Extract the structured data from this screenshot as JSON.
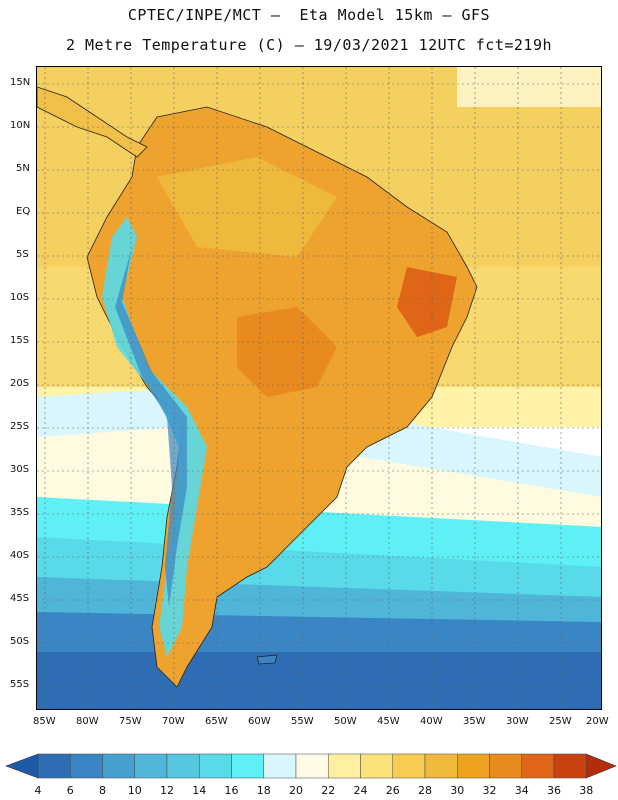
{
  "header": {
    "line1": "CPTEC/INPE/MCT —  Eta Model 15km — GFS",
    "line2": "2 Metre Temperature (C) — 19/03/2021 12UTC fct=219h"
  },
  "map": {
    "lat_labels": [
      "15N",
      "10N",
      "5N",
      "EQ",
      "5S",
      "10S",
      "15S",
      "20S",
      "25S",
      "30S",
      "35S",
      "40S",
      "45S",
      "50S",
      "55S"
    ],
    "lon_labels": [
      "85W",
      "80W",
      "75W",
      "70W",
      "65W",
      "60W",
      "55W",
      "50W",
      "45W",
      "40W",
      "35W",
      "30W",
      "25W",
      "20W"
    ]
  },
  "colorbar": {
    "labels": [
      "4",
      "6",
      "8",
      "10",
      "12",
      "14",
      "16",
      "18",
      "20",
      "22",
      "24",
      "26",
      "28",
      "30",
      "32",
      "34",
      "36",
      "38"
    ],
    "colors": [
      "#2e6db3",
      "#3a85c4",
      "#45a0cf",
      "#4fb6d9",
      "#55c8e0",
      "#58dae8",
      "#5ef0f5",
      "#d8f6fc",
      "#fffbe8",
      "#fff0a0",
      "#fde27a",
      "#f6cd50",
      "#efba3c",
      "#eea320",
      "#e88a1e",
      "#df6616",
      "#c9420f"
    ],
    "left_arrow_color": "#1f5aa8",
    "right_arrow_color": "#b32d0b"
  }
}
